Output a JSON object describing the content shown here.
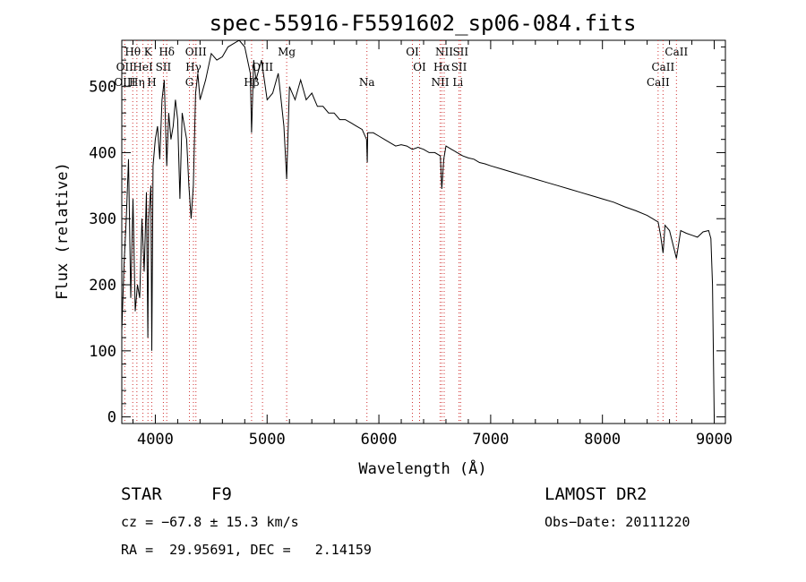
{
  "chart_data": {
    "type": "line",
    "title": "spec-55916-F5591602_sp06-084.fits",
    "xlabel": "Wavelength (Å)",
    "ylabel": "Flux (relative)",
    "xlim": [
      3700,
      9100
    ],
    "ylim": [
      -10,
      570
    ],
    "xticks": [
      4000,
      5000,
      6000,
      7000,
      8000,
      9000
    ],
    "yticks": [
      0,
      100,
      200,
      300,
      400,
      500
    ],
    "grid": false,
    "series": [
      {
        "x": [
          3700,
          3720,
          3740,
          3760,
          3780,
          3800,
          3820,
          3840,
          3860,
          3880,
          3900,
          3920,
          3933,
          3940,
          3960,
          3968,
          3980,
          4000,
          4020,
          4040,
          4060,
          4080,
          4102,
          4120,
          4140,
          4160,
          4180,
          4200,
          4220,
          4240,
          4260,
          4280,
          4300,
          4320,
          4340,
          4360,
          4380,
          4400,
          4450,
          4500,
          4550,
          4600,
          4650,
          4700,
          4750,
          4800,
          4850,
          4861,
          4880,
          4900,
          4950,
          5000,
          5050,
          5100,
          5150,
          5175,
          5200,
          5250,
          5300,
          5350,
          5400,
          5450,
          5500,
          5550,
          5600,
          5650,
          5700,
          5750,
          5800,
          5850,
          5890,
          5896,
          5900,
          5950,
          6000,
          6050,
          6100,
          6150,
          6200,
          6250,
          6300,
          6350,
          6400,
          6450,
          6500,
          6550,
          6563,
          6580,
          6600,
          6650,
          6700,
          6750,
          6800,
          6850,
          6900,
          6950,
          7000,
          7100,
          7200,
          7300,
          7400,
          7500,
          7600,
          7700,
          7800,
          7900,
          8000,
          8100,
          8200,
          8300,
          8400,
          8498,
          8520,
          8542,
          8560,
          8600,
          8662,
          8700,
          8750,
          8800,
          8850,
          8900,
          8950,
          8970,
          8985,
          9000
        ],
        "y": [
          130,
          230,
          300,
          390,
          180,
          330,
          160,
          200,
          180,
          300,
          220,
          340,
          120,
          300,
          350,
          100,
          380,
          420,
          440,
          390,
          480,
          510,
          380,
          460,
          420,
          440,
          480,
          450,
          330,
          460,
          440,
          420,
          350,
          300,
          350,
          490,
          520,
          480,
          510,
          550,
          540,
          545,
          560,
          565,
          580,
          560,
          520,
          430,
          540,
          510,
          540,
          480,
          490,
          520,
          440,
          360,
          500,
          480,
          510,
          480,
          490,
          470,
          470,
          460,
          460,
          450,
          450,
          445,
          440,
          435,
          420,
          385,
          430,
          430,
          425,
          420,
          415,
          410,
          412,
          410,
          405,
          408,
          405,
          400,
          400,
          395,
          345,
          390,
          410,
          405,
          400,
          395,
          392,
          390,
          385,
          383,
          380,
          375,
          370,
          365,
          360,
          355,
          350,
          345,
          340,
          335,
          330,
          325,
          318,
          312,
          305,
          295,
          275,
          248,
          290,
          282,
          240,
          282,
          278,
          275,
          272,
          280,
          282,
          270,
          200,
          0
        ]
      }
    ],
    "spectral_lines": [
      {
        "label": "Hθ",
        "wavelength": 3798,
        "row": 1
      },
      {
        "label": "K",
        "wavelength": 3934,
        "row": 1
      },
      {
        "label": "Hδ",
        "wavelength": 4102,
        "row": 1
      },
      {
        "label": "OIII",
        "wavelength": 4363,
        "row": 1
      },
      {
        "label": "Mg",
        "wavelength": 5175,
        "row": 1
      },
      {
        "label": "OI",
        "wavelength": 6300,
        "row": 1
      },
      {
        "label": "NII",
        "wavelength": 6584,
        "row": 1
      },
      {
        "label": "SII",
        "wavelength": 6731,
        "row": 1
      },
      {
        "label": "CaII",
        "wavelength": 8662,
        "row": 1
      },
      {
        "label": "OII",
        "wavelength": 3726,
        "row": 2
      },
      {
        "label": "HeI",
        "wavelength": 3889,
        "row": 2
      },
      {
        "label": "SII",
        "wavelength": 4072,
        "row": 2
      },
      {
        "label": "Hγ",
        "wavelength": 4341,
        "row": 2
      },
      {
        "label": "OIII",
        "wavelength": 4959,
        "row": 2
      },
      {
        "label": "OI",
        "wavelength": 6364,
        "row": 2
      },
      {
        "label": "Hα",
        "wavelength": 6563,
        "row": 2
      },
      {
        "label": "SII",
        "wavelength": 6717,
        "row": 2
      },
      {
        "label": "CaII",
        "wavelength": 8542,
        "row": 2
      },
      {
        "label": "OIII",
        "wavelength": 3727,
        "row": 3
      },
      {
        "label": "Hη",
        "wavelength": 3835,
        "row": 3
      },
      {
        "label": "H",
        "wavelength": 3968,
        "row": 3
      },
      {
        "label": "G",
        "wavelength": 4305,
        "row": 3
      },
      {
        "label": "Hβ",
        "wavelength": 4861,
        "row": 3
      },
      {
        "label": "Na",
        "wavelength": 5893,
        "row": 3
      },
      {
        "label": "NII",
        "wavelength": 6548,
        "row": 3
      },
      {
        "label": "Li",
        "wavelength": 6707,
        "row": 3
      },
      {
        "label": "CaII",
        "wavelength": 8498,
        "row": 3
      }
    ],
    "dotted_line_wavelengths": [
      3726,
      3798,
      3835,
      3889,
      3934,
      3968,
      4072,
      4102,
      4305,
      4341,
      4363,
      4861,
      4959,
      5175,
      5893,
      6300,
      6364,
      6548,
      6563,
      6584,
      6717,
      6731,
      8498,
      8542,
      8662
    ]
  },
  "info": {
    "object_class": "STAR",
    "subclass": "F9",
    "survey": "LAMOST DR2",
    "cz": "cz = −67.8 ± 15.3 km/s",
    "obs_date": "Obs−Date: 20111220",
    "coords": "RA =  29.95691, DEC =   2.14159"
  }
}
